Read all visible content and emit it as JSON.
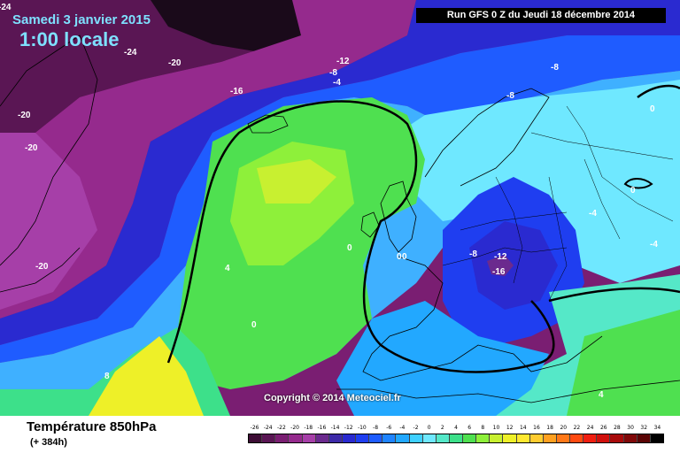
{
  "header": {
    "date": "Samedi 3 janvier 2015",
    "time": "1:00 locale",
    "run": "Run GFS 0 Z du Jeudi 18 décembre 2014"
  },
  "copyright": "Copyright © 2014 Meteociel.fr",
  "footer": {
    "field": "Température 850hPa",
    "lead": "(+ 384h)"
  },
  "legend": {
    "values": [
      "-26",
      "-24",
      "-22",
      "-20",
      "-18",
      "-16",
      "-14",
      "-12",
      "-10",
      "-8",
      "-6",
      "-4",
      "-2",
      "0",
      "2",
      "4",
      "6",
      "8",
      "10",
      "12",
      "14",
      "16",
      "18",
      "20",
      "22",
      "24",
      "26",
      "28",
      "30",
      "32",
      "34"
    ],
    "colors": [
      "#3d0d35",
      "#5a1654",
      "#7a1e72",
      "#952a8d",
      "#a63fa8",
      "#6b2a8e",
      "#3d2aa8",
      "#2a2ad0",
      "#1f3ef0",
      "#1e5cff",
      "#1f84ff",
      "#22a8ff",
      "#3fd0ff",
      "#6fe8ff",
      "#55e8c8",
      "#3de08a",
      "#4fe050",
      "#8ef03a",
      "#c8f030",
      "#eef028",
      "#ffe830",
      "#ffcc30",
      "#ffa020",
      "#ff7818",
      "#ff4a10",
      "#f01e10",
      "#d0100c",
      "#a80a0a",
      "#800808",
      "#5a0404",
      "#000000"
    ]
  },
  "contour_labels": [
    {
      "text": "-24",
      "color": "#ffffff"
    },
    {
      "text": "-20",
      "color": "#ffffff"
    },
    {
      "text": "-20",
      "color": "#ffffff"
    },
    {
      "text": "-20",
      "color": "#ffffff"
    },
    {
      "text": "-20",
      "color": "#ffffff"
    },
    {
      "text": "-24",
      "color": "#ffffff"
    },
    {
      "text": "-16",
      "color": "#ffffff"
    },
    {
      "text": "-12",
      "color": "#ffffff"
    },
    {
      "text": "-8",
      "color": "#ffffff"
    },
    {
      "text": "-4",
      "color": "#ffffff"
    },
    {
      "text": "-8",
      "color": "#ffffff"
    },
    {
      "text": "-8",
      "color": "#ffffff"
    },
    {
      "text": "0",
      "color": "#ffffff"
    },
    {
      "text": "0",
      "color": "#ffffff"
    },
    {
      "text": "-4",
      "color": "#ffffff"
    },
    {
      "text": "-4",
      "color": "#ffffff"
    },
    {
      "text": "0",
      "color": "#ffffff"
    },
    {
      "text": "0",
      "color": "#ffffff"
    },
    {
      "text": "-8",
      "color": "#ffffff"
    },
    {
      "text": "-12",
      "color": "#ffffff"
    },
    {
      "text": "-16",
      "color": "#ffffff"
    },
    {
      "text": "4",
      "color": "#ffffff"
    },
    {
      "text": "0",
      "color": "#ffffff"
    },
    {
      "text": "8",
      "color": "#ffffff"
    },
    {
      "text": "0",
      "color": "#ffffff"
    },
    {
      "text": "4",
      "color": "#ffffff"
    }
  ]
}
